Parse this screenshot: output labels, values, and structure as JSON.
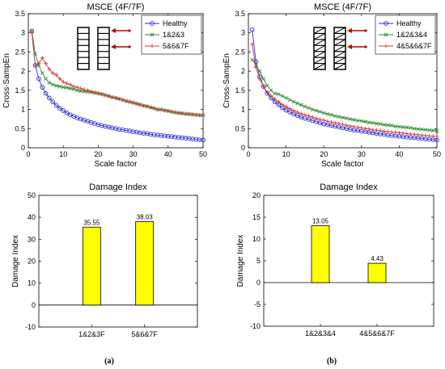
{
  "panel_labels": [
    "(a)",
    "(b)"
  ],
  "chart_data": [
    {
      "id": "a-top",
      "type": "line",
      "title": "MSCE (4F/7F)",
      "xlabel": "Scale factor",
      "ylabel": "Cross-SampEn",
      "xlim": [
        0,
        50
      ],
      "ylim": [
        0,
        3.5
      ],
      "xticks": [
        0,
        10,
        20,
        30,
        40,
        50
      ],
      "yticks": [
        0,
        0.5,
        1,
        1.5,
        2,
        2.5,
        3,
        3.5
      ],
      "grid": false,
      "legend": "top-right",
      "series": [
        {
          "name": "Healthy",
          "color": "#2b2bd6",
          "marker": "circle",
          "x": [
            1,
            2,
            3,
            4,
            5,
            6,
            7,
            8,
            9,
            10,
            11,
            12,
            13,
            14,
            15,
            16,
            17,
            18,
            19,
            20,
            21,
            22,
            23,
            24,
            25,
            26,
            27,
            28,
            29,
            30,
            31,
            32,
            33,
            34,
            35,
            36,
            37,
            38,
            39,
            40,
            41,
            42,
            43,
            44,
            45,
            46,
            47,
            48,
            49,
            50
          ],
          "y": [
            3.05,
            2.15,
            1.8,
            1.58,
            1.42,
            1.3,
            1.2,
            1.11,
            1.03,
            0.97,
            0.91,
            0.86,
            0.82,
            0.78,
            0.75,
            0.72,
            0.69,
            0.66,
            0.63,
            0.6,
            0.58,
            0.56,
            0.54,
            0.52,
            0.5,
            0.48,
            0.47,
            0.45,
            0.44,
            0.42,
            0.41,
            0.39,
            0.38,
            0.37,
            0.35,
            0.34,
            0.33,
            0.32,
            0.31,
            0.3,
            0.29,
            0.28,
            0.27,
            0.26,
            0.25,
            0.24,
            0.23,
            0.22,
            0.21,
            0.2
          ]
        },
        {
          "name": "1&2&3",
          "color": "#2e8b2e",
          "marker": "x",
          "x": [
            1,
            2,
            3,
            4,
            5,
            6,
            7,
            8,
            9,
            10,
            11,
            12,
            13,
            14,
            15,
            16,
            17,
            18,
            19,
            20,
            21,
            22,
            23,
            24,
            25,
            26,
            27,
            28,
            29,
            30,
            31,
            32,
            33,
            34,
            35,
            36,
            37,
            38,
            39,
            40,
            41,
            42,
            43,
            44,
            45,
            46,
            47,
            48,
            49,
            50
          ],
          "y": [
            3.05,
            2.45,
            2.15,
            1.95,
            1.8,
            1.7,
            1.65,
            1.62,
            1.6,
            1.58,
            1.57,
            1.55,
            1.53,
            1.5,
            1.48,
            1.47,
            1.46,
            1.45,
            1.43,
            1.42,
            1.4,
            1.38,
            1.35,
            1.32,
            1.3,
            1.28,
            1.25,
            1.22,
            1.2,
            1.18,
            1.15,
            1.13,
            1.1,
            1.08,
            1.05,
            1.03,
            1.0,
            1.0,
            0.98,
            0.96,
            0.94,
            0.92,
            0.9,
            0.9,
            0.88,
            0.88,
            0.87,
            0.86,
            0.85,
            0.85
          ]
        },
        {
          "name": "5&6&7F",
          "color": "#d23c3c",
          "marker": "plus",
          "x": [
            1,
            2,
            3,
            4,
            5,
            6,
            7,
            8,
            9,
            10,
            11,
            12,
            13,
            14,
            15,
            16,
            17,
            18,
            19,
            20,
            21,
            22,
            23,
            24,
            25,
            26,
            27,
            28,
            29,
            30,
            31,
            32,
            33,
            34,
            35,
            36,
            37,
            38,
            39,
            40,
            41,
            42,
            43,
            44,
            45,
            46,
            47,
            48,
            49,
            50
          ],
          "y": [
            3.0,
            2.15,
            2.2,
            2.35,
            2.2,
            2.05,
            1.95,
            1.9,
            1.8,
            1.72,
            1.68,
            1.65,
            1.6,
            1.58,
            1.55,
            1.52,
            1.5,
            1.47,
            1.45,
            1.42,
            1.4,
            1.37,
            1.35,
            1.32,
            1.3,
            1.27,
            1.25,
            1.22,
            1.2,
            1.17,
            1.15,
            1.12,
            1.1,
            1.08,
            1.06,
            1.03,
            1.0,
            0.99,
            0.97,
            0.96,
            0.94,
            0.93,
            0.92,
            0.9,
            0.89,
            0.88,
            0.87,
            0.86,
            0.85,
            0.84
          ]
        }
      ]
    },
    {
      "id": "b-top",
      "type": "line",
      "title": "MSCE (4F/7F)",
      "xlabel": "Scale factor",
      "ylabel": "Cross-SampEn",
      "xlim": [
        0,
        50
      ],
      "ylim": [
        0,
        3.5
      ],
      "xticks": [
        0,
        10,
        20,
        30,
        40,
        50
      ],
      "yticks": [
        0,
        0.5,
        1,
        1.5,
        2,
        2.5,
        3,
        3.5
      ],
      "grid": false,
      "legend": "top-right",
      "series": [
        {
          "name": "Healthy",
          "color": "#2b2bd6",
          "marker": "circle",
          "x": [
            1,
            2,
            3,
            4,
            5,
            6,
            7,
            8,
            9,
            10,
            11,
            12,
            13,
            14,
            15,
            16,
            17,
            18,
            19,
            20,
            21,
            22,
            23,
            24,
            25,
            26,
            27,
            28,
            29,
            30,
            31,
            32,
            33,
            34,
            35,
            36,
            37,
            38,
            39,
            40,
            41,
            42,
            43,
            44,
            45,
            46,
            47,
            48,
            49,
            50
          ],
          "y": [
            3.08,
            2.25,
            1.85,
            1.6,
            1.42,
            1.3,
            1.2,
            1.12,
            1.04,
            0.98,
            0.93,
            0.88,
            0.84,
            0.8,
            0.77,
            0.74,
            0.71,
            0.68,
            0.65,
            0.62,
            0.6,
            0.58,
            0.56,
            0.54,
            0.52,
            0.5,
            0.48,
            0.46,
            0.45,
            0.43,
            0.42,
            0.4,
            0.39,
            0.37,
            0.36,
            0.35,
            0.33,
            0.32,
            0.31,
            0.3,
            0.29,
            0.28,
            0.27,
            0.26,
            0.25,
            0.24,
            0.23,
            0.22,
            0.21,
            0.2
          ]
        },
        {
          "name": "1&2&3&4",
          "color": "#2e8b2e",
          "marker": "x",
          "x": [
            1,
            2,
            3,
            4,
            5,
            6,
            7,
            8,
            9,
            10,
            11,
            12,
            13,
            14,
            15,
            16,
            17,
            18,
            19,
            20,
            21,
            22,
            23,
            24,
            25,
            26,
            27,
            28,
            29,
            30,
            31,
            32,
            33,
            34,
            35,
            36,
            37,
            38,
            39,
            40,
            41,
            42,
            43,
            44,
            45,
            46,
            47,
            48,
            49,
            50
          ],
          "y": [
            2.3,
            2.15,
            2.0,
            1.8,
            1.62,
            1.5,
            1.42,
            1.4,
            1.35,
            1.3,
            1.25,
            1.2,
            1.16,
            1.12,
            1.08,
            1.04,
            1.0,
            0.97,
            0.94,
            0.91,
            0.88,
            0.86,
            0.83,
            0.81,
            0.79,
            0.77,
            0.75,
            0.73,
            0.71,
            0.7,
            0.68,
            0.66,
            0.65,
            0.63,
            0.62,
            0.6,
            0.59,
            0.58,
            0.56,
            0.55,
            0.54,
            0.53,
            0.52,
            0.5,
            0.49,
            0.48,
            0.47,
            0.46,
            0.45,
            0.44
          ]
        },
        {
          "name": "4&5&6&7F",
          "color": "#d23c3c",
          "marker": "plus",
          "x": [
            1,
            2,
            3,
            4,
            5,
            6,
            7,
            8,
            9,
            10,
            11,
            12,
            13,
            14,
            15,
            16,
            17,
            18,
            19,
            20,
            21,
            22,
            23,
            24,
            25,
            26,
            27,
            28,
            29,
            30,
            31,
            32,
            33,
            34,
            35,
            36,
            37,
            38,
            39,
            40,
            41,
            42,
            43,
            44,
            45,
            46,
            47,
            48,
            49,
            50
          ],
          "y": [
            2.7,
            2.1,
            1.8,
            1.6,
            1.45,
            1.35,
            1.27,
            1.2,
            1.13,
            1.07,
            1.02,
            0.97,
            0.93,
            0.89,
            0.86,
            0.83,
            0.8,
            0.77,
            0.74,
            0.72,
            0.69,
            0.67,
            0.65,
            0.63,
            0.61,
            0.59,
            0.57,
            0.55,
            0.54,
            0.52,
            0.5,
            0.49,
            0.47,
            0.46,
            0.45,
            0.43,
            0.42,
            0.41,
            0.4,
            0.39,
            0.38,
            0.37,
            0.36,
            0.35,
            0.34,
            0.33,
            0.32,
            0.31,
            0.3,
            0.3
          ]
        }
      ]
    },
    {
      "id": "a-bottom",
      "type": "bar",
      "title": "Damage Index",
      "xlabel": "",
      "ylabel": "Damage Index",
      "ylim": [
        -10,
        50
      ],
      "yticks": [
        -10,
        0,
        10,
        20,
        30,
        40,
        50
      ],
      "categories": [
        "1&2&3F",
        "5&6&7F"
      ],
      "values": [
        35.55,
        38.03
      ],
      "value_labels": [
        "35.55",
        "38.03"
      ],
      "bar_color": "#ffff00",
      "grid": false
    },
    {
      "id": "b-bottom",
      "type": "bar",
      "title": "Damage Index",
      "xlabel": "",
      "ylabel": "Damage Index",
      "ylim": [
        -10,
        20
      ],
      "yticks": [
        -10,
        -5,
        0,
        5,
        10,
        15,
        20
      ],
      "categories": [
        "1&2&3&4",
        "4&5&6&7F"
      ],
      "values": [
        13.05,
        4.43
      ],
      "value_labels": [
        "13.05",
        "4.43"
      ],
      "bar_color": "#ffff00",
      "grid": false
    }
  ]
}
